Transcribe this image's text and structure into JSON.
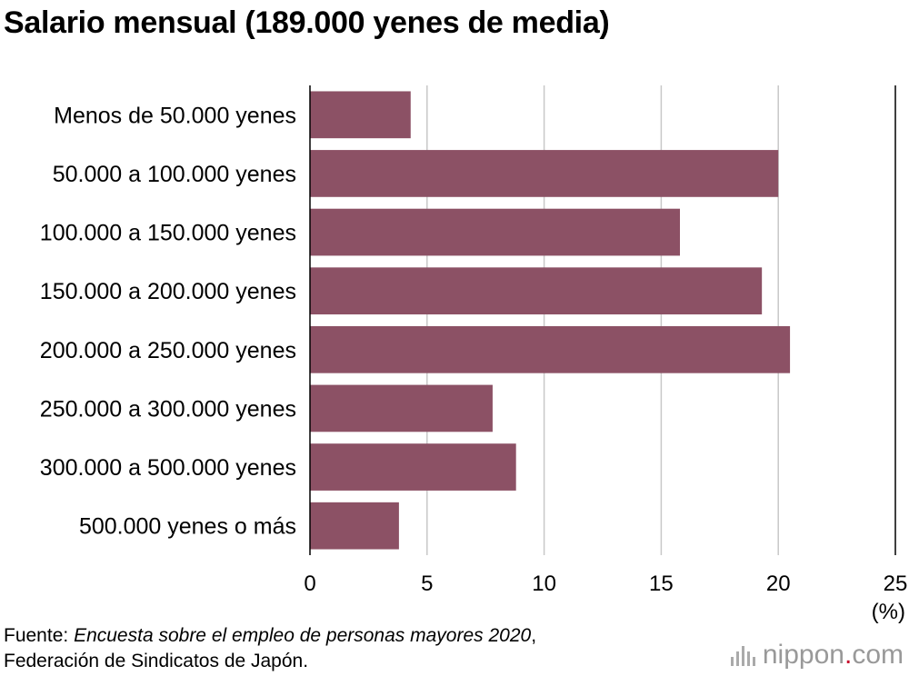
{
  "chart_data": {
    "type": "bar",
    "orientation": "horizontal",
    "title": "Salario mensual (189.000 yenes de media)",
    "categories": [
      "Menos de 50.000 yenes",
      "50.000 a 100.000 yenes",
      "100.000 a 150.000 yenes",
      "150.000 a 200.000 yenes",
      "200.000 a 250.000 yenes",
      "250.000 a 300.000 yenes",
      "300.000 a 500.000 yenes",
      "500.000 yenes o más"
    ],
    "values": [
      4.3,
      20.0,
      15.8,
      19.3,
      20.5,
      7.8,
      8.8,
      3.8
    ],
    "xlim": [
      0,
      25
    ],
    "xticks": [
      "0",
      "5",
      "10",
      "15",
      "20",
      "25"
    ],
    "unit": "(%)",
    "bar_color": "#8c5165",
    "grid": true
  },
  "source": {
    "prefix": "Fuente: ",
    "publication": "Encuesta sobre el empleo de personas mayores 2020",
    "separator": ",",
    "organization": "Federación de Sindicatos de Japón."
  },
  "logo": {
    "name": "nippon",
    "dot": ".",
    "suffix": "com",
    "icon": "nippon-logo-bars-icon"
  }
}
